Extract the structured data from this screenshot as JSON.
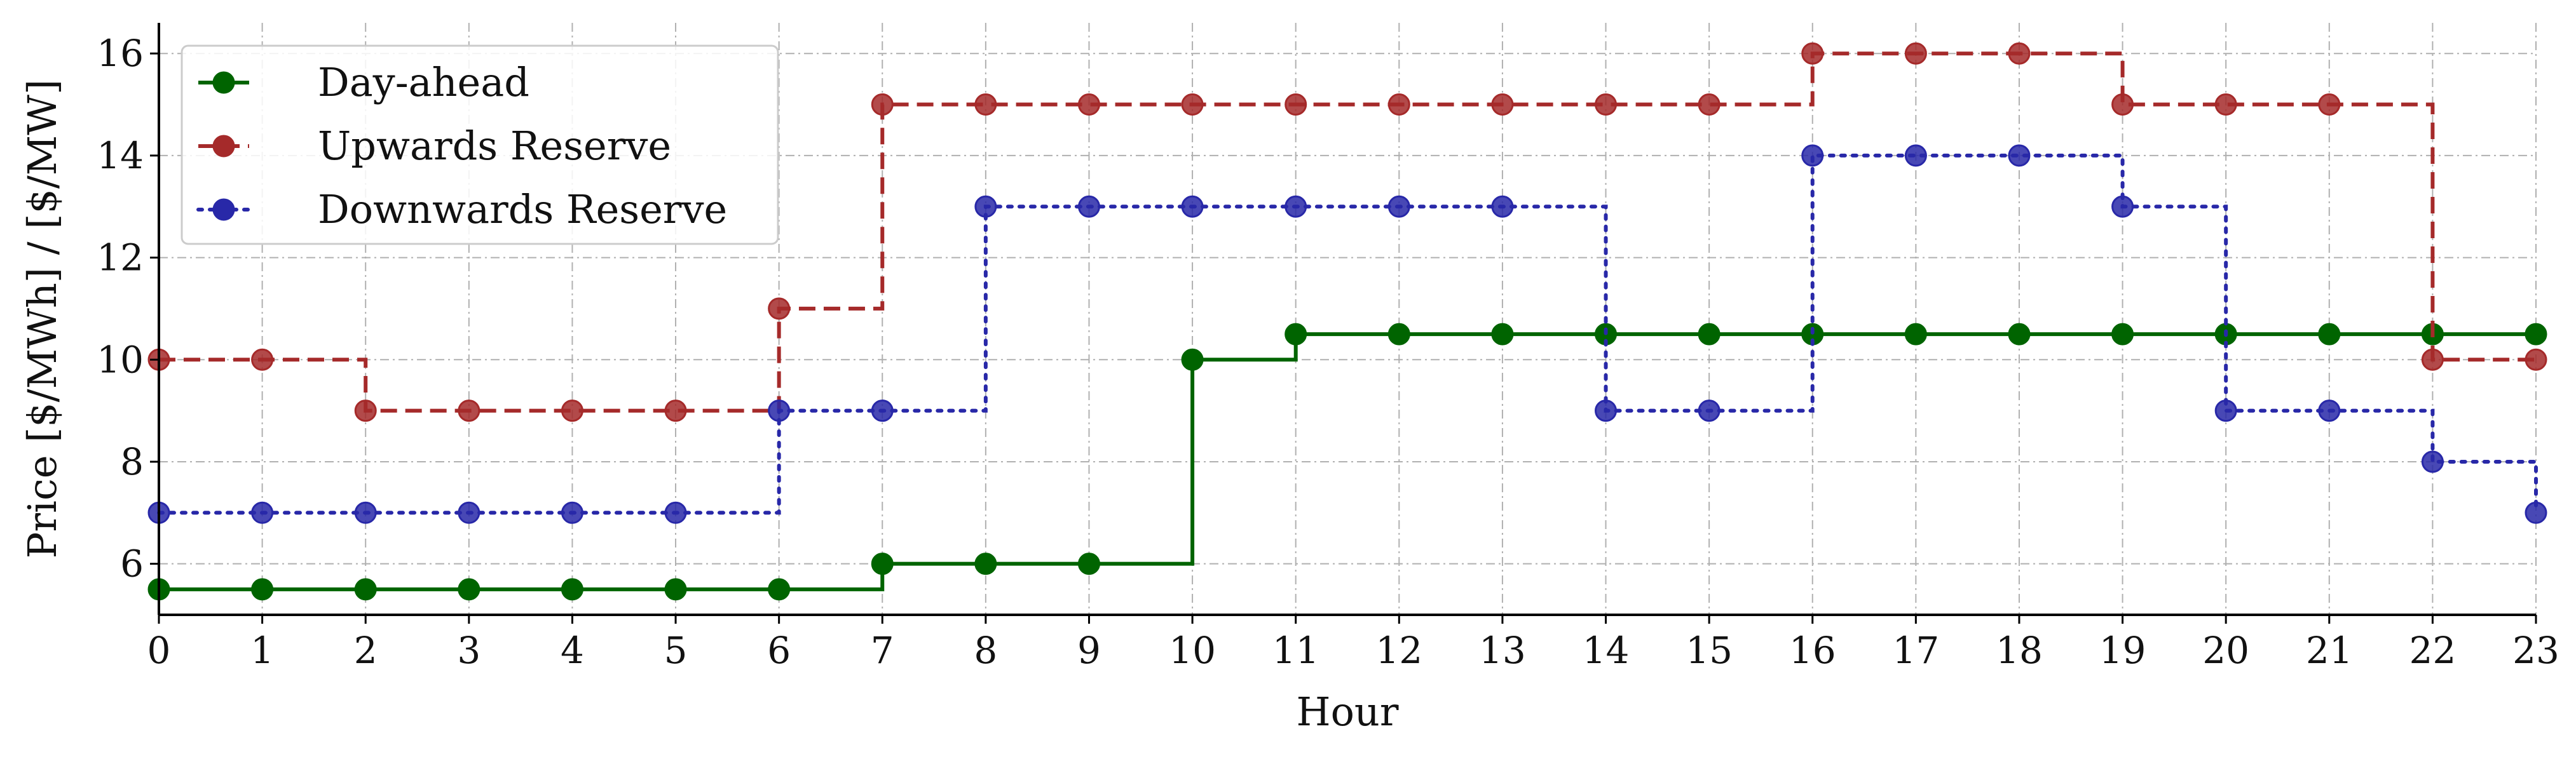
{
  "chart_data": {
    "type": "line",
    "step": "post",
    "xlabel": "Hour",
    "ylabel": "Price [$/MWh] / [$/MW]",
    "xlim": [
      0,
      23
    ],
    "ylim": [
      5,
      16.6
    ],
    "xticks": [
      "0",
      "1",
      "2",
      "3",
      "4",
      "5",
      "6",
      "7",
      "8",
      "9",
      "10",
      "11",
      "12",
      "13",
      "14",
      "15",
      "16",
      "17",
      "18",
      "19",
      "20",
      "21",
      "22",
      "23"
    ],
    "yticks": [
      "6",
      "8",
      "10",
      "12",
      "14",
      "16"
    ],
    "grid": true,
    "legend_position": "top-left",
    "x": [
      0,
      1,
      2,
      3,
      4,
      5,
      6,
      7,
      8,
      9,
      10,
      11,
      12,
      13,
      14,
      15,
      16,
      17,
      18,
      19,
      20,
      21,
      22,
      23
    ],
    "series": [
      {
        "name": "Day-ahead",
        "color": "#006400",
        "linestyle": "solid",
        "values": [
          5.5,
          5.5,
          5.5,
          5.5,
          5.5,
          5.5,
          5.5,
          6.0,
          6.0,
          6.0,
          10.0,
          10.5,
          10.5,
          10.5,
          10.5,
          10.5,
          10.5,
          10.5,
          10.5,
          10.5,
          10.5,
          10.5,
          10.5,
          10.5
        ]
      },
      {
        "name": "Upwards Reserve",
        "color": "#a52a2a",
        "linestyle": "dashed",
        "values": [
          10,
          10,
          9,
          9,
          9,
          9,
          11,
          15,
          15,
          15,
          15,
          15,
          15,
          15,
          15,
          15,
          16,
          16,
          16,
          15,
          15,
          15,
          10,
          10
        ]
      },
      {
        "name": "Downwards Reserve",
        "color": "#2828a8",
        "linestyle": "dotted",
        "values": [
          7,
          7,
          7,
          7,
          7,
          7,
          9,
          9,
          13,
          13,
          13,
          13,
          13,
          13,
          9,
          9,
          14,
          14,
          14,
          13,
          9,
          9,
          8,
          7
        ]
      }
    ]
  }
}
